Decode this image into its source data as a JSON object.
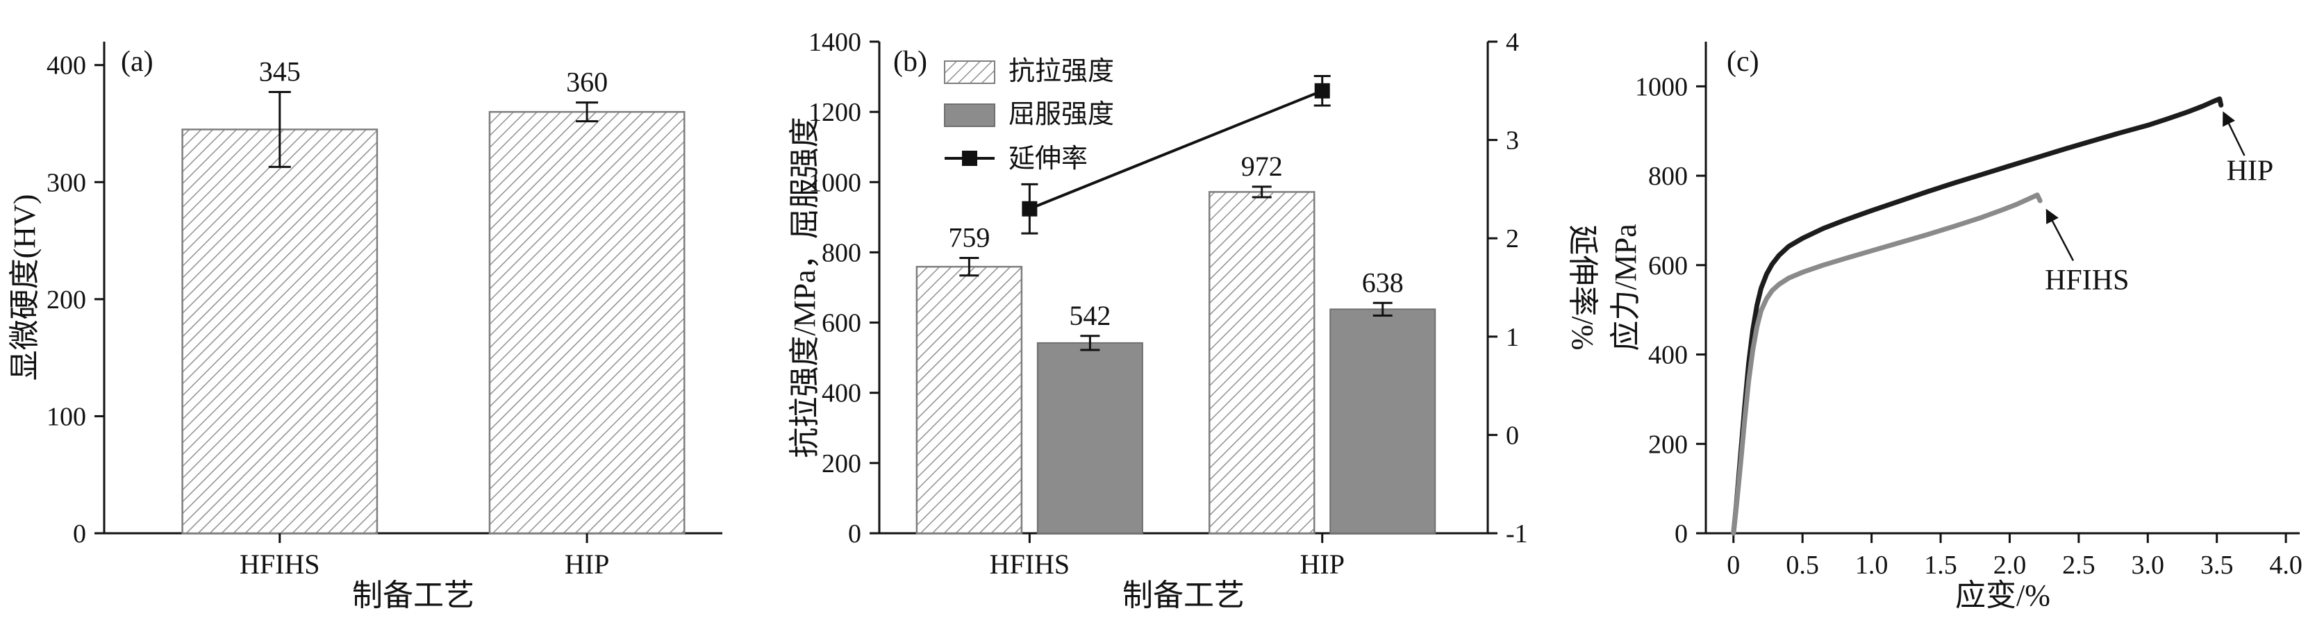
{
  "colors": {
    "axis": "#111111",
    "hatch_line": "#909090",
    "bar_edge": "#7d7d7d",
    "yield_fill": "#8c8c8c",
    "yield_edge": "#6f6f6f",
    "hip": "#1c1c1c",
    "hfihs": "#8a8a8a",
    "background": "#ffffff"
  },
  "chart_data": [
    {
      "id": "a",
      "type": "bar",
      "panel_label": "(a)",
      "xlabel": "制备工艺",
      "ylabel": "显微硬度(HV)",
      "categories": [
        "HFIHS",
        "HIP"
      ],
      "values": [
        345,
        360
      ],
      "errors": [
        32,
        8
      ],
      "value_labels": [
        "345",
        "360"
      ],
      "ylim": [
        0,
        420
      ],
      "yticks": [
        0,
        100,
        200,
        300,
        400
      ],
      "bar_style": "hatched",
      "grid": "off",
      "legend_position": "none"
    },
    {
      "id": "b",
      "type": "bar",
      "panel_label": "(b)",
      "xlabel": "制备工艺",
      "ylabel_left": "抗拉强度/MPa，屈服强度",
      "ylabel_right": "延伸率/%",
      "categories": [
        "HFIHS",
        "HIP"
      ],
      "series": [
        {
          "name": "抗拉强度",
          "kind": "bar",
          "style": "hatched",
          "axis": "left",
          "values": [
            759,
            972
          ],
          "errors": [
            25,
            15
          ],
          "labels": [
            "759",
            "972"
          ]
        },
        {
          "name": "屈服强度",
          "kind": "bar",
          "style": "solid",
          "axis": "left",
          "values": [
            542,
            638
          ],
          "errors": [
            20,
            18
          ],
          "labels": [
            "542",
            "638"
          ]
        },
        {
          "name": "延伸率",
          "kind": "line",
          "style": "square-marker",
          "axis": "right",
          "values": [
            2.3,
            3.5
          ],
          "errors": [
            0.25,
            0.15
          ],
          "labels": []
        }
      ],
      "ylim_left": [
        0,
        1400
      ],
      "yticks_left": [
        0,
        200,
        400,
        600,
        800,
        1000,
        1200,
        1400
      ],
      "ylim_right": [
        -1,
        4
      ],
      "yticks_right": [
        -1,
        0,
        1,
        2,
        3,
        4
      ],
      "grid": "off",
      "legend_position": "upper left"
    },
    {
      "id": "c",
      "type": "line",
      "panel_label": "(c)",
      "xlabel": "应变/%",
      "ylabel": "应力/MPa",
      "xlim": [
        -0.2,
        4.1
      ],
      "xticks": [
        0,
        0.5,
        1.0,
        1.5,
        2.0,
        2.5,
        3.0,
        3.5,
        4.0
      ],
      "xtick_labels": [
        "0",
        "0.5",
        "1.0",
        "1.5",
        "2.0",
        "2.5",
        "3.0",
        "3.5",
        "4.0"
      ],
      "ylim": [
        0,
        1100
      ],
      "yticks": [
        0,
        200,
        400,
        600,
        800,
        1000
      ],
      "grid": "off",
      "legend_position": "none",
      "series": [
        {
          "name": "HIP",
          "color_key": "hip",
          "points": [
            [
              0,
              0
            ],
            [
              0.02,
              60
            ],
            [
              0.05,
              170
            ],
            [
              0.08,
              280
            ],
            [
              0.11,
              380
            ],
            [
              0.14,
              455
            ],
            [
              0.17,
              510
            ],
            [
              0.2,
              548
            ],
            [
              0.24,
              580
            ],
            [
              0.28,
              602
            ],
            [
              0.33,
              622
            ],
            [
              0.4,
              642
            ],
            [
              0.5,
              660
            ],
            [
              0.65,
              682
            ],
            [
              0.8,
              700
            ],
            [
              1.0,
              722
            ],
            [
              1.2,
              743
            ],
            [
              1.4,
              764
            ],
            [
              1.6,
              784
            ],
            [
              1.8,
              803
            ],
            [
              2.0,
              822
            ],
            [
              2.2,
              841
            ],
            [
              2.4,
              860
            ],
            [
              2.6,
              878
            ],
            [
              2.8,
              896
            ],
            [
              3.0,
              913
            ],
            [
              3.15,
              928
            ],
            [
              3.3,
              944
            ],
            [
              3.4,
              956
            ],
            [
              3.48,
              967
            ],
            [
              3.52,
              972
            ],
            [
              3.53,
              958
            ]
          ]
        },
        {
          "name": "HFIHS",
          "color_key": "hfihs",
          "points": [
            [
              0,
              0
            ],
            [
              0.02,
              55
            ],
            [
              0.05,
              150
            ],
            [
              0.08,
              250
            ],
            [
              0.11,
              340
            ],
            [
              0.14,
              410
            ],
            [
              0.17,
              462
            ],
            [
              0.2,
              498
            ],
            [
              0.24,
              525
            ],
            [
              0.28,
              543
            ],
            [
              0.33,
              557
            ],
            [
              0.4,
              571
            ],
            [
              0.5,
              584
            ],
            [
              0.65,
              600
            ],
            [
              0.8,
              614
            ],
            [
              1.0,
              632
            ],
            [
              1.2,
              650
            ],
            [
              1.4,
              668
            ],
            [
              1.6,
              687
            ],
            [
              1.8,
              707
            ],
            [
              1.95,
              724
            ],
            [
              2.05,
              736
            ],
            [
              2.15,
              750
            ],
            [
              2.2,
              757
            ],
            [
              2.22,
              744
            ]
          ]
        }
      ],
      "annotations": [
        {
          "text": "HIP",
          "x": 3.74,
          "y": 790,
          "arrow_from": {
            "x": 3.7,
            "y": 845
          },
          "arrow_to": {
            "x": 3.55,
            "y": 940
          }
        },
        {
          "text": "HFIHS",
          "x": 2.56,
          "y": 545,
          "arrow_from": {
            "x": 2.46,
            "y": 610
          },
          "arrow_to": {
            "x": 2.27,
            "y": 722
          }
        }
      ]
    }
  ]
}
